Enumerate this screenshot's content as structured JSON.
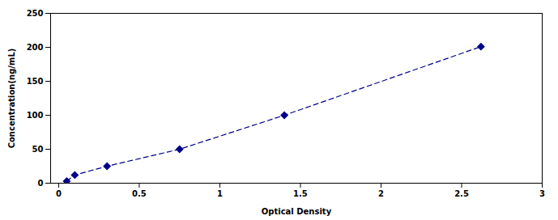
{
  "chart_data": {
    "type": "line",
    "x": [
      0.05,
      0.1,
      0.3,
      0.75,
      1.4,
      2.62
    ],
    "values": [
      3,
      12,
      25,
      50,
      100,
      201
    ],
    "color": "#00008B",
    "marker": "diamond",
    "line_style": "dashed",
    "xlabel": "Optical Density",
    "ylabel": "Concentration(ng/mL)",
    "xlim": [
      -0.05,
      3.0
    ],
    "ylim": [
      0,
      250
    ],
    "xticks": [
      0,
      0.5,
      1,
      1.5,
      2,
      2.5,
      3
    ],
    "yticks": [
      0,
      50,
      100,
      150,
      200,
      250
    ],
    "grid": false
  }
}
